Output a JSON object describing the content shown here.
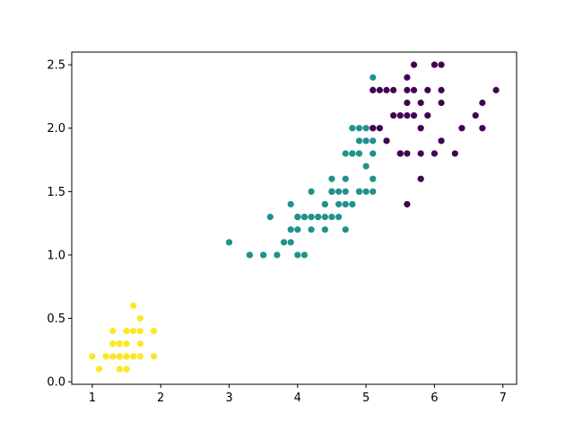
{
  "chart_data": {
    "type": "scatter",
    "title": "",
    "xlabel": "",
    "ylabel": "",
    "xlim": [
      0.7,
      7.2
    ],
    "ylim": [
      -0.02,
      2.6
    ],
    "xticks": [
      1,
      2,
      3,
      4,
      5,
      6,
      7
    ],
    "yticks": [
      0.0,
      0.5,
      1.0,
      1.5,
      2.0,
      2.5
    ],
    "grid": false,
    "series": [
      {
        "color": "#fde725",
        "points": [
          [
            1.4,
            0.2
          ],
          [
            1.4,
            0.2
          ],
          [
            1.3,
            0.2
          ],
          [
            1.5,
            0.2
          ],
          [
            1.4,
            0.2
          ],
          [
            1.7,
            0.4
          ],
          [
            1.4,
            0.3
          ],
          [
            1.5,
            0.2
          ],
          [
            1.4,
            0.2
          ],
          [
            1.5,
            0.1
          ],
          [
            1.5,
            0.2
          ],
          [
            1.6,
            0.2
          ],
          [
            1.4,
            0.1
          ],
          [
            1.1,
            0.1
          ],
          [
            1.2,
            0.2
          ],
          [
            1.5,
            0.4
          ],
          [
            1.3,
            0.4
          ],
          [
            1.4,
            0.3
          ],
          [
            1.7,
            0.3
          ],
          [
            1.5,
            0.3
          ],
          [
            1.7,
            0.2
          ],
          [
            1.5,
            0.4
          ],
          [
            1.0,
            0.2
          ],
          [
            1.7,
            0.5
          ],
          [
            1.9,
            0.2
          ],
          [
            1.6,
            0.2
          ],
          [
            1.6,
            0.4
          ],
          [
            1.5,
            0.2
          ],
          [
            1.4,
            0.2
          ],
          [
            1.6,
            0.2
          ],
          [
            1.6,
            0.2
          ],
          [
            1.5,
            0.4
          ],
          [
            1.5,
            0.1
          ],
          [
            1.4,
            0.2
          ],
          [
            1.5,
            0.2
          ],
          [
            1.2,
            0.2
          ],
          [
            1.3,
            0.2
          ],
          [
            1.4,
            0.1
          ],
          [
            1.3,
            0.2
          ],
          [
            1.5,
            0.2
          ],
          [
            1.3,
            0.3
          ],
          [
            1.3,
            0.3
          ],
          [
            1.3,
            0.2
          ],
          [
            1.6,
            0.6
          ],
          [
            1.9,
            0.4
          ],
          [
            1.4,
            0.3
          ],
          [
            1.6,
            0.2
          ],
          [
            1.4,
            0.2
          ],
          [
            1.5,
            0.2
          ],
          [
            1.4,
            0.2
          ],
          [
            3.0,
            1.1
          ]
        ]
      },
      {
        "color": "#21918c",
        "points": [
          [
            4.7,
            1.4
          ],
          [
            4.5,
            1.5
          ],
          [
            4.9,
            1.5
          ],
          [
            4.0,
            1.3
          ],
          [
            4.6,
            1.5
          ],
          [
            4.5,
            1.3
          ],
          [
            4.7,
            1.6
          ],
          [
            3.3,
            1.0
          ],
          [
            4.6,
            1.3
          ],
          [
            3.9,
            1.4
          ],
          [
            3.5,
            1.0
          ],
          [
            4.2,
            1.5
          ],
          [
            4.0,
            1.0
          ],
          [
            4.7,
            1.4
          ],
          [
            3.6,
            1.3
          ],
          [
            4.4,
            1.4
          ],
          [
            4.5,
            1.5
          ],
          [
            4.1,
            1.0
          ],
          [
            4.5,
            1.5
          ],
          [
            3.9,
            1.1
          ],
          [
            4.8,
            1.8
          ],
          [
            4.0,
            1.3
          ],
          [
            4.9,
            1.5
          ],
          [
            4.7,
            1.2
          ],
          [
            4.3,
            1.3
          ],
          [
            4.4,
            1.4
          ],
          [
            4.8,
            1.4
          ],
          [
            5.0,
            1.7
          ],
          [
            4.5,
            1.5
          ],
          [
            3.5,
            1.0
          ],
          [
            3.8,
            1.1
          ],
          [
            3.7,
            1.0
          ],
          [
            3.9,
            1.2
          ],
          [
            5.1,
            1.6
          ],
          [
            4.5,
            1.5
          ],
          [
            4.5,
            1.6
          ],
          [
            4.7,
            1.5
          ],
          [
            4.4,
            1.3
          ],
          [
            4.1,
            1.3
          ],
          [
            4.0,
            1.3
          ],
          [
            4.4,
            1.2
          ],
          [
            4.6,
            1.4
          ],
          [
            4.0,
            1.2
          ],
          [
            3.3,
            1.0
          ],
          [
            4.2,
            1.3
          ],
          [
            4.2,
            1.2
          ],
          [
            4.2,
            1.3
          ],
          [
            4.3,
            1.3
          ],
          [
            3.0,
            1.1
          ],
          [
            4.1,
            1.3
          ],
          [
            5.1,
            2.4
          ],
          [
            5.1,
            2.3
          ],
          [
            5.0,
            2.0
          ],
          [
            4.9,
            2.0
          ],
          [
            5.0,
            1.9
          ],
          [
            5.1,
            2.0
          ],
          [
            4.8,
            2.0
          ],
          [
            5.1,
            1.8
          ],
          [
            4.8,
            1.8
          ],
          [
            4.9,
            1.8
          ],
          [
            5.0,
            1.5
          ],
          [
            5.1,
            1.5
          ],
          [
            4.9,
            1.9
          ],
          [
            4.8,
            1.8
          ],
          [
            5.1,
            1.9
          ],
          [
            4.7,
            1.8
          ]
        ]
      },
      {
        "color": "#440154",
        "points": [
          [
            6.0,
            2.5
          ],
          [
            6.1,
            2.5
          ],
          [
            5.7,
            2.5
          ],
          [
            5.6,
            2.4
          ],
          [
            5.2,
            2.3
          ],
          [
            5.3,
            2.3
          ],
          [
            5.4,
            2.3
          ],
          [
            5.6,
            2.3
          ],
          [
            6.1,
            2.3
          ],
          [
            6.9,
            2.3
          ],
          [
            5.4,
            2.1
          ],
          [
            5.6,
            2.1
          ],
          [
            5.7,
            2.1
          ],
          [
            5.5,
            2.1
          ],
          [
            6.6,
            2.1
          ],
          [
            5.6,
            2.2
          ],
          [
            5.8,
            2.2
          ],
          [
            6.1,
            2.2
          ],
          [
            6.7,
            2.2
          ],
          [
            5.9,
            2.1
          ],
          [
            5.2,
            2.0
          ],
          [
            5.1,
            2.0
          ],
          [
            6.4,
            2.0
          ],
          [
            6.7,
            2.0
          ],
          [
            5.8,
            2.0
          ],
          [
            5.3,
            1.9
          ],
          [
            6.1,
            1.9
          ],
          [
            5.5,
            1.8
          ],
          [
            5.6,
            1.8
          ],
          [
            5.8,
            1.8
          ],
          [
            6.0,
            1.8
          ],
          [
            6.3,
            1.8
          ],
          [
            5.8,
            1.6
          ],
          [
            5.6,
            1.4
          ],
          [
            5.7,
            2.3
          ],
          [
            5.9,
            2.3
          ],
          [
            5.5,
            1.8
          ],
          [
            5.1,
            2.3
          ]
        ]
      }
    ]
  }
}
